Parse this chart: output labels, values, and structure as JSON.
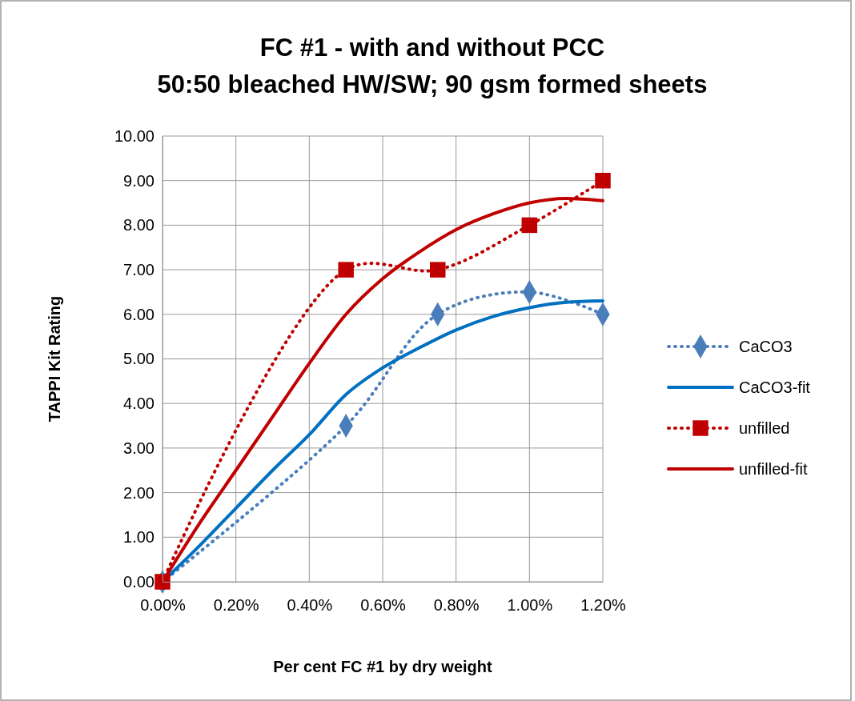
{
  "chart_data": {
    "type": "line",
    "title": "FC #1 - with and without PCC",
    "subtitle": "50:50 bleached HW/SW; 90 gsm formed sheets",
    "xlabel": "Per cent FC #1 by dry weight",
    "ylabel": "TAPPI Kit Rating",
    "xlim": [
      0,
      1.2
    ],
    "ylim": [
      0,
      10
    ],
    "xticks": [
      {
        "value": 0,
        "label": "0.00%"
      },
      {
        "value": 0.2,
        "label": "0.20%"
      },
      {
        "value": 0.4,
        "label": "0.40%"
      },
      {
        "value": 0.6,
        "label": "0.60%"
      },
      {
        "value": 0.8,
        "label": "0.80%"
      },
      {
        "value": 1.0,
        "label": "1.00%"
      },
      {
        "value": 1.2,
        "label": "1.20%"
      }
    ],
    "yticks": [
      {
        "value": 0,
        "label": "0.00"
      },
      {
        "value": 1,
        "label": "1.00"
      },
      {
        "value": 2,
        "label": "2.00"
      },
      {
        "value": 3,
        "label": "3.00"
      },
      {
        "value": 4,
        "label": "4.00"
      },
      {
        "value": 5,
        "label": "5.00"
      },
      {
        "value": 6,
        "label": "6.00"
      },
      {
        "value": 7,
        "label": "7.00"
      },
      {
        "value": 8,
        "label": "8.00"
      },
      {
        "value": 9,
        "label": "9.00"
      },
      {
        "value": 10,
        "label": "10.00"
      }
    ],
    "grid": true,
    "legend": "right",
    "series": [
      {
        "name": "CaCO3",
        "color": "#4a7ebb",
        "x": [
          0,
          0.5,
          0.75,
          1.0,
          1.2
        ],
        "values": [
          0,
          3.5,
          6,
          6.5,
          6
        ],
        "marker": "diamond",
        "line_style": "dotted"
      },
      {
        "name": "CaCO3-fit",
        "color": "#0070c0",
        "x": [
          0,
          0.1,
          0.2,
          0.3,
          0.4,
          0.5,
          0.6,
          0.7,
          0.8,
          0.9,
          1.0,
          1.1,
          1.2
        ],
        "values": [
          0,
          0.8,
          1.65,
          2.5,
          3.3,
          4.2,
          4.8,
          5.25,
          5.65,
          5.95,
          6.15,
          6.27,
          6.3
        ],
        "marker": "none",
        "line_style": "solid"
      },
      {
        "name": "unfilled",
        "color": "#c00000",
        "x": [
          0,
          0.5,
          0.75,
          1.0,
          1.2
        ],
        "values": [
          0,
          7,
          7,
          8,
          9
        ],
        "marker": "square",
        "line_style": "dotted"
      },
      {
        "name": "unfilled-fit",
        "color": "#c00000",
        "x": [
          0,
          0.1,
          0.2,
          0.3,
          0.4,
          0.5,
          0.6,
          0.7,
          0.8,
          0.9,
          1.0,
          1.1,
          1.2
        ],
        "values": [
          0,
          1.3,
          2.5,
          3.7,
          4.9,
          6.0,
          6.8,
          7.4,
          7.9,
          8.25,
          8.5,
          8.6,
          8.55
        ],
        "marker": "none",
        "line_style": "solid"
      }
    ]
  }
}
